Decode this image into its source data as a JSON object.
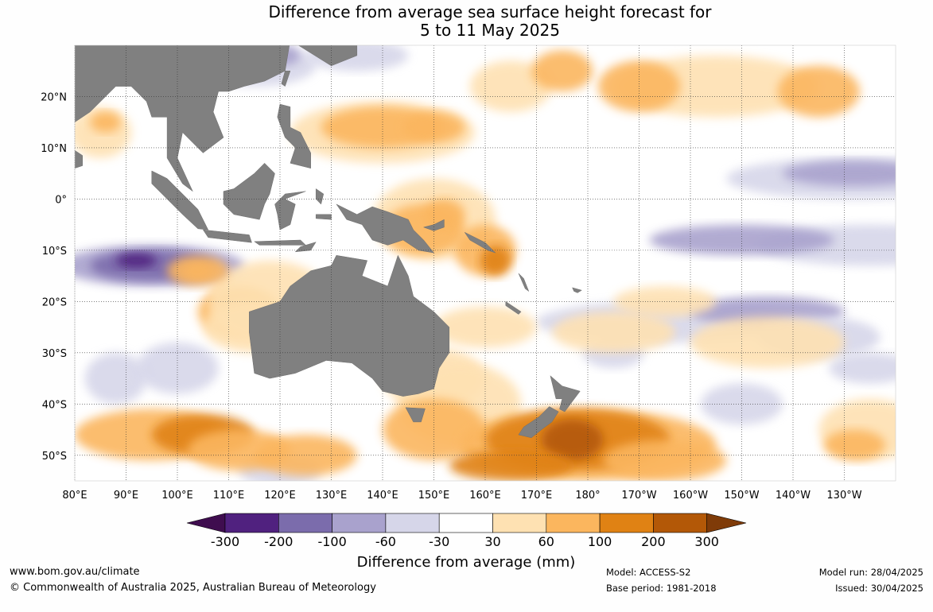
{
  "title": {
    "line1": "Difference from average sea surface height forecast for",
    "line2": "5 to 11 May 2025"
  },
  "map": {
    "lat_labels": [
      "20°N",
      "10°N",
      "0°",
      "10°S",
      "20°S",
      "30°S",
      "40°S",
      "50°S"
    ],
    "lon_labels": [
      "80°E",
      "90°E",
      "100°E",
      "110°E",
      "120°E",
      "130°E",
      "140°E",
      "150°E",
      "160°E",
      "170°E",
      "180°",
      "170°W",
      "160°W",
      "150°W",
      "140°W",
      "130°W"
    ],
    "lat_range": [
      -55,
      30
    ],
    "lon_range": [
      80,
      240
    ],
    "land_color": "#808080",
    "grid": "dotted"
  },
  "legend": {
    "ticks": [
      "-300",
      "-200",
      "-100",
      "-60",
      "-30",
      "30",
      "60",
      "100",
      "200",
      "300"
    ],
    "colors": [
      "#3f0d4f",
      "#50217f",
      "#7b6cac",
      "#a9a2cd",
      "#d6d6e9",
      "#ffffff",
      "#fee1b2",
      "#fbb65e",
      "#e08214",
      "#b35807",
      "#7f3b08"
    ],
    "label": "Difference from average (mm)"
  },
  "footer": {
    "website": "www.bom.gov.au/climate",
    "copyright": "© Commonwealth of Australia 2025, Australian Bureau of Meteorology",
    "model": "Model: ACCESS-S2",
    "base_period": "Base period: 1981-2018",
    "model_run": "Model run: 28/04/2025",
    "issued": "Issued: 30/04/2025"
  }
}
